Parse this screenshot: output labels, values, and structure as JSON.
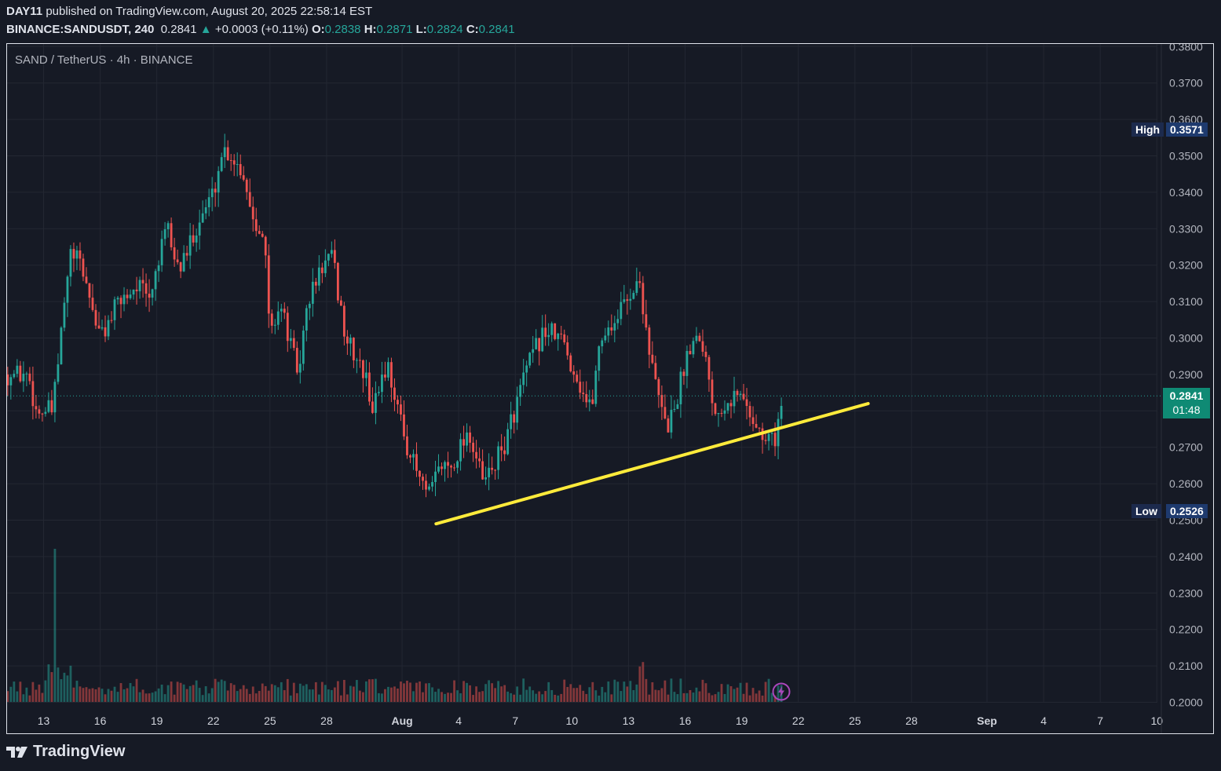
{
  "header": {
    "publisher": "DAY11",
    "published_text": "published on TradingView.com, August 20, 2025 22:58:14 EST",
    "ticker": "BINANCE:SANDUSDT, 240",
    "last_price": "0.2841",
    "change_arrow": "▲",
    "change": "+0.0003 (+0.11%)",
    "open_label": "O:",
    "open": "0.2838",
    "high_label": "H:",
    "high": "0.2871",
    "low_label": "L:",
    "low": "0.2824",
    "close_label": "C:",
    "close": "0.2841"
  },
  "symbol_title": "SAND / TetherUS · 4h · BINANCE",
  "markers": {
    "high_label": "High",
    "high_value": "0.3571",
    "low_label": "Low",
    "low_value": "0.2526",
    "last_value": "0.2841",
    "countdown": "01:48"
  },
  "footer": {
    "brand": "TradingView"
  },
  "colors": {
    "up": "#26a69a",
    "down": "#ef5350",
    "trendline": "#ffeb3b",
    "background": "#161a25",
    "grid": "#232732"
  },
  "chart_data": {
    "type": "candlestick",
    "title": "SAND / TetherUS · 4h · BINANCE",
    "y_ticks": [
      "0.2000",
      "0.2100",
      "0.2200",
      "0.2300",
      "0.2400",
      "0.2500",
      "0.2600",
      "0.2700",
      "0.2800",
      "0.2900",
      "0.3000",
      "0.3100",
      "0.3200",
      "0.3300",
      "0.3400",
      "0.3500",
      "0.3600",
      "0.3700",
      "0.3800"
    ],
    "ylim": [
      0.2,
      0.38
    ],
    "x_ticks": [
      "13",
      "16",
      "19",
      "22",
      "25",
      "28",
      "Aug",
      "4",
      "7",
      "10",
      "13",
      "16",
      "19",
      "22",
      "25",
      "28",
      "Sep",
      "4",
      "7",
      "10"
    ],
    "x_tick_days": [
      0,
      3,
      6,
      9,
      12,
      15,
      19,
      22,
      25,
      28,
      31,
      34,
      37,
      40,
      43,
      46,
      50,
      53,
      56,
      59
    ],
    "x_start_day": -1.9,
    "x_end_day": 59,
    "bold_ticks": [
      "Aug",
      "Sep"
    ],
    "close_path_days": [
      -1.9,
      -0.8,
      -0.4,
      0.5,
      0.7,
      1.4,
      2.0,
      3.0,
      4.0,
      5.0,
      5.6,
      6.0,
      6.6,
      7.0,
      7.4,
      8.0,
      9.0,
      9.5,
      10.0,
      10.6,
      11.0,
      11.5,
      11.8,
      12.0,
      12.5,
      13.5,
      14.0,
      14.8,
      15.3,
      16.0,
      17.0,
      17.5,
      17.9,
      18.3,
      19.0,
      19.7,
      20.4,
      21.0,
      21.6,
      22.5,
      23.3,
      24.4,
      25.5,
      26.5,
      27.4,
      28.2,
      29.0,
      29.5,
      30.3,
      31.0,
      31.6,
      32.3,
      33.0,
      33.5,
      34.2,
      34.8,
      35.6,
      36.3,
      37.0,
      37.7,
      38.1,
      38.8,
      39.2
    ],
    "close_path_values": [
      0.29,
      0.29,
      0.28,
      0.28,
      0.29,
      0.323,
      0.32,
      0.3,
      0.31,
      0.315,
      0.31,
      0.32,
      0.33,
      0.32,
      0.32,
      0.33,
      0.34,
      0.352,
      0.35,
      0.345,
      0.335,
      0.33,
      0.32,
      0.3,
      0.31,
      0.29,
      0.31,
      0.32,
      0.322,
      0.3,
      0.29,
      0.28,
      0.29,
      0.292,
      0.275,
      0.264,
      0.256,
      0.265,
      0.265,
      0.275,
      0.26,
      0.27,
      0.29,
      0.302,
      0.3,
      0.29,
      0.28,
      0.3,
      0.305,
      0.312,
      0.315,
      0.29,
      0.275,
      0.282,
      0.298,
      0.302,
      0.28,
      0.284,
      0.284,
      0.277,
      0.272,
      0.273,
      0.2841
    ],
    "volume_note": "4h volume bars, largest spike on day 0 (~13 Jul)",
    "annotations": [
      {
        "type": "trendline",
        "from_day": 20.8,
        "from_value": 0.249,
        "to_day": 43.7,
        "to_value": 0.282,
        "color": "#ffeb3b"
      },
      {
        "type": "high_marker",
        "value": 0.3571
      },
      {
        "type": "low_marker",
        "value": 0.2526
      },
      {
        "type": "last_price_line",
        "value": 0.2841
      }
    ]
  }
}
